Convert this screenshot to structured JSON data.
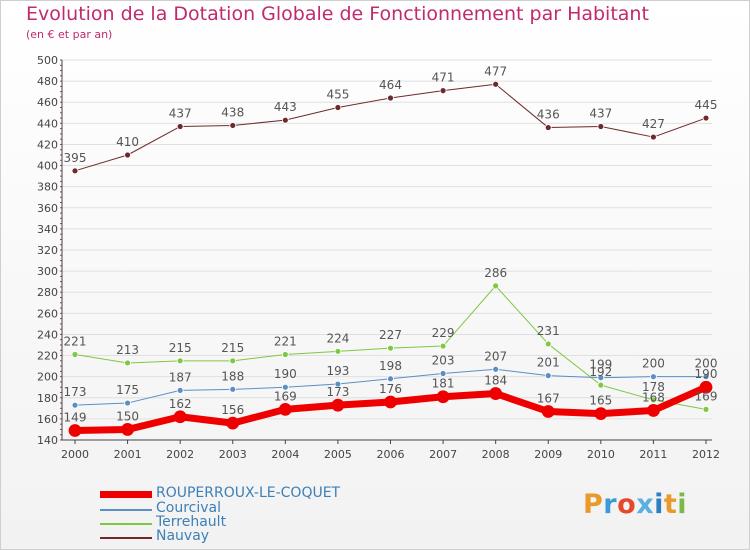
{
  "title": "Evolution de la Dotation Globale de Fonctionnement par Habitant",
  "subtitle": "(en € et par an)",
  "brand": {
    "letters": [
      "P",
      "r",
      "o",
      "x",
      "i",
      "t",
      "i"
    ],
    "colors": [
      "#e89a2a",
      "#3c9ad6",
      "#e8482a",
      "#5ab0e0",
      "#2e7fc0",
      "#e89a2a",
      "#7ab848"
    ]
  },
  "colors": {
    "title": "#c02a6e",
    "axis": "#444444",
    "grid": "#e0e0e0",
    "label": "#555555"
  },
  "chart_data": {
    "type": "line",
    "title": "Evolution de la Dotation Globale de Fonctionnement par Habitant",
    "ylabel": "(en € et par an)",
    "x": [
      "2000",
      "2001",
      "2002",
      "2003",
      "2004",
      "2005",
      "2006",
      "2007",
      "2008",
      "2009",
      "2010",
      "2011",
      "2012"
    ],
    "ylim": [
      140,
      500
    ],
    "yticks": [
      "140",
      "160",
      "180",
      "200",
      "220",
      "240",
      "260",
      "280",
      "300",
      "320",
      "340",
      "360",
      "380",
      "400",
      "420",
      "440",
      "460",
      "480",
      "500"
    ],
    "series": [
      {
        "name": "Nauvay",
        "color": "#6e2a2a",
        "width": 1,
        "values": [
          395,
          410,
          437,
          438,
          443,
          455,
          464,
          471,
          477,
          436,
          437,
          427,
          445
        ],
        "labels": [
          "395",
          "410",
          "437",
          "438",
          "443",
          "455",
          "464",
          "471",
          "477",
          "436",
          "437",
          "427",
          "445"
        ]
      },
      {
        "name": "Terrehault",
        "color": "#7ec843",
        "width": 1,
        "values": [
          221,
          213,
          215,
          215,
          221,
          224,
          227,
          229,
          286,
          231,
          192,
          178,
          169
        ],
        "labels": [
          "221",
          "213",
          "215",
          "215",
          "221",
          "224",
          "227",
          "229",
          "286",
          "231",
          "192",
          "178",
          "169"
        ]
      },
      {
        "name": "Courcival",
        "color": "#5a8fc4",
        "width": 1,
        "values": [
          173,
          175,
          187,
          188,
          190,
          193,
          198,
          203,
          207,
          201,
          199,
          200,
          200
        ],
        "labels": [
          "173",
          "175",
          "187",
          "188",
          "190",
          "193",
          "198",
          "203",
          "207",
          "201",
          "199",
          "200",
          "200"
        ]
      },
      {
        "name": "ROUPERROUX-LE-COQUET",
        "color": "#ee0000",
        "width": 7,
        "values": [
          149,
          150,
          162,
          156,
          169,
          173,
          176,
          181,
          184,
          167,
          165,
          168,
          190
        ],
        "labels": [
          "149",
          "150",
          "162",
          "156",
          "169",
          "173",
          "176",
          "181",
          "184",
          "167",
          "165",
          "168",
          "190"
        ]
      }
    ],
    "legend": [
      {
        "name": "ROUPERROUX-LE-COQUET",
        "color": "#ee0000",
        "thick": true
      },
      {
        "name": "Courcival",
        "color": "#5a8fc4",
        "thick": false
      },
      {
        "name": "Terrehault",
        "color": "#7ec843",
        "thick": false
      },
      {
        "name": "Nauvay",
        "color": "#6e2a2a",
        "thick": false
      }
    ]
  }
}
